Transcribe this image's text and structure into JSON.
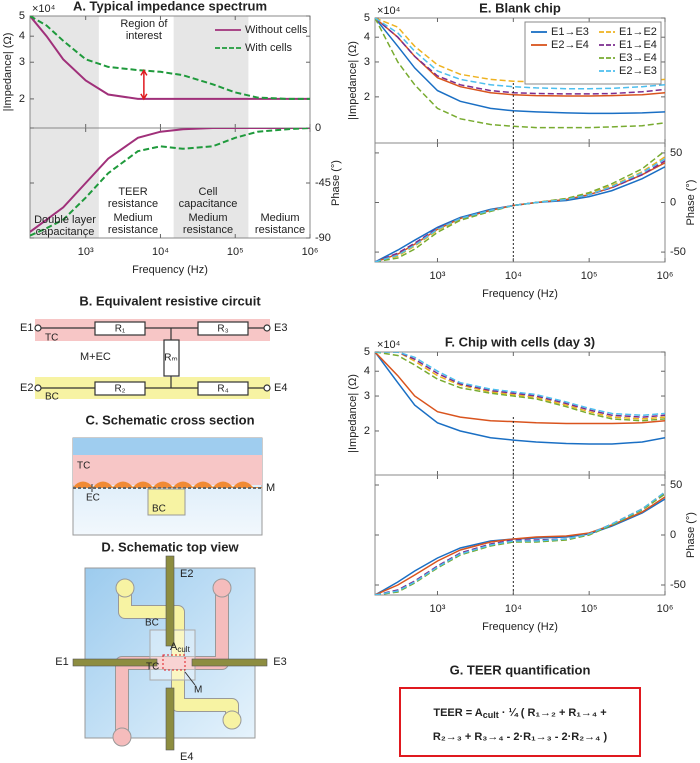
{
  "chart_data": [
    {
      "type": "line",
      "title": "A. Typical impedance spectrum",
      "ylabel": "|Impedance| (Ω)",
      "y_multiplier": "×10⁴",
      "log_x": true,
      "log_y": true,
      "xlim": [
        180,
        1000000
      ],
      "ylim": [
        14500,
        50000
      ],
      "yticks": [
        {
          "value": 20000,
          "label": "2"
        },
        {
          "value": 30000,
          "label": "3"
        },
        {
          "value": 40000,
          "label": "4"
        },
        {
          "value": 50000,
          "label": "5"
        }
      ],
      "x": [
        180,
        300,
        500,
        1000,
        2000,
        5000,
        10000,
        20000,
        50000,
        100000,
        200000,
        500000,
        1000000
      ],
      "shaded": [
        [
          180,
          1500
        ],
        [
          15000,
          150000
        ]
      ],
      "annotation": [
        "Region of",
        "interest"
      ],
      "arrow": {
        "x": 6000,
        "from": 20000,
        "to": 27400,
        "color": "#e0191f"
      },
      "series": [
        {
          "name": "Without cells",
          "color": "#a0307a",
          "dash": false,
          "values": [
            50000,
            40000,
            31000,
            24500,
            21000,
            20000,
            20000,
            20000,
            20000,
            20000,
            20000,
            20000,
            20000
          ]
        },
        {
          "name": "With cells",
          "color": "#1f9a3c",
          "dash": true,
          "values": [
            50000,
            45000,
            38000,
            31000,
            28500,
            27500,
            27000,
            26000,
            23500,
            21500,
            20300,
            20000,
            20000
          ]
        }
      ]
    },
    {
      "type": "line",
      "ylabel": "Phase (°)",
      "xlabel": "Frequency (Hz)",
      "log_x": true,
      "xlim": [
        180,
        1000000
      ],
      "ylim": [
        -90,
        0
      ],
      "yticks": [
        -90,
        -45,
        0
      ],
      "xticks": [
        {
          "value": 1000,
          "label": "10³"
        },
        {
          "value": 10000,
          "label": "10⁴"
        },
        {
          "value": 100000,
          "label": "10⁵"
        },
        {
          "value": 1000000,
          "label": "10⁶"
        }
      ],
      "x": [
        180,
        300,
        500,
        1000,
        2000,
        5000,
        10000,
        20000,
        50000,
        100000,
        200000,
        500000,
        1000000
      ],
      "annotations": [
        {
          "lines": [
            "Double layer",
            "capacitance"
          ],
          "color": "#333333"
        },
        {
          "lines": [
            "TEER",
            "resistance"
          ],
          "color": "#1f9a3c"
        },
        {
          "lines": [
            "Medium",
            "resistance"
          ],
          "color": "#a0307a"
        },
        {
          "lines": [
            "Cell",
            "capacitance"
          ],
          "color": "#1f9a3c"
        },
        {
          "lines": [
            "Medium",
            "resistance"
          ],
          "color": "#a0307a"
        },
        {
          "lines": [
            "Medium",
            "resistance"
          ],
          "color": "#333333"
        }
      ],
      "series": [
        {
          "color": "#a0307a",
          "dash": false,
          "values": [
            -85,
            -75,
            -65,
            -45,
            -25,
            -8,
            -3,
            -1,
            0,
            0,
            0,
            0,
            0
          ]
        },
        {
          "color": "#1f9a3c",
          "dash": true,
          "values": [
            -88,
            -82,
            -75,
            -57,
            -37,
            -19,
            -15,
            -17,
            -15,
            -8,
            -3,
            -1,
            0
          ]
        }
      ]
    },
    {
      "type": "line",
      "title": "E. Blank chip",
      "ylabel": "|Impedance| (Ω)",
      "y_multiplier": "×10⁴",
      "log_x": true,
      "log_y": true,
      "xlim": [
        150,
        1000000
      ],
      "ylim": [
        11700,
        50000
      ],
      "marker_x": 10000,
      "yticks": [
        {
          "value": 20000,
          "label": "2"
        },
        {
          "value": 30000,
          "label": "3"
        },
        {
          "value": 40000,
          "label": "4"
        },
        {
          "value": 50000,
          "label": "5"
        }
      ],
      "x": [
        150,
        300,
        500,
        1000,
        2000,
        5000,
        10000,
        20000,
        50000,
        100000,
        200000,
        500000,
        1000000
      ],
      "series": [
        {
          "name": "E1→E3",
          "color": "#1a6fc4",
          "dash": false,
          "values": [
            50000,
            36000,
            28000,
            21500,
            19000,
            17500,
            17000,
            16800,
            16600,
            16500,
            16500,
            16600,
            16800
          ]
        },
        {
          "name": "E2→E4",
          "color": "#d9541e",
          "dash": false,
          "values": [
            50000,
            40000,
            32000,
            25000,
            22500,
            21000,
            20500,
            20300,
            20200,
            20200,
            20300,
            20500,
            21000
          ]
        },
        {
          "name": "E1→E2",
          "color": "#eeb220",
          "dash": true,
          "values": [
            50000,
            45000,
            36000,
            29000,
            26000,
            24500,
            24000,
            23800,
            23700,
            23700,
            23800,
            24000,
            24500
          ]
        },
        {
          "name": "E1→E4",
          "color": "#7b2d8e",
          "dash": true,
          "values": [
            50000,
            40000,
            32000,
            25500,
            23000,
            21500,
            21000,
            20800,
            20700,
            20700,
            20800,
            21200,
            21800
          ]
        },
        {
          "name": "E3→E4",
          "color": "#78ab30",
          "dash": true,
          "values": [
            50000,
            30000,
            23000,
            17500,
            15500,
            14500,
            14200,
            14000,
            14000,
            14000,
            14100,
            14300,
            14800
          ]
        },
        {
          "name": "E2→E3",
          "color": "#4dbfee",
          "dash": true,
          "values": [
            50000,
            42000,
            34000,
            27000,
            24500,
            23000,
            22500,
            22200,
            22000,
            22000,
            22100,
            22500,
            23000
          ]
        }
      ]
    },
    {
      "type": "line",
      "ylabel": "Phase (°)",
      "xlabel": "Frequency (Hz)",
      "log_x": true,
      "xlim": [
        150,
        1000000
      ],
      "ylim": [
        -60,
        60
      ],
      "yticks": [
        -50,
        0,
        50
      ],
      "xticks": [
        {
          "value": 1000,
          "label": "10³"
        },
        {
          "value": 10000,
          "label": "10⁴"
        },
        {
          "value": 100000,
          "label": "10⁵"
        },
        {
          "value": 1000000,
          "label": "10⁶"
        }
      ],
      "x": [
        150,
        300,
        500,
        1000,
        2000,
        5000,
        10000,
        20000,
        50000,
        100000,
        200000,
        500000,
        1000000
      ],
      "series": [
        {
          "color": "#1a6fc4",
          "dash": false,
          "values": [
            -60,
            -48,
            -38,
            -25,
            -15,
            -7,
            -3,
            0,
            2,
            6,
            12,
            24,
            36
          ]
        },
        {
          "color": "#d9541e",
          "dash": false,
          "values": [
            -60,
            -52,
            -42,
            -27,
            -16,
            -8,
            -3,
            0,
            3,
            8,
            15,
            28,
            40
          ]
        },
        {
          "color": "#eeb220",
          "dash": true,
          "values": [
            -60,
            -54,
            -44,
            -28,
            -17,
            -8,
            -3,
            0,
            4,
            9,
            17,
            31,
            46
          ]
        },
        {
          "color": "#7b2d8e",
          "dash": true,
          "values": [
            -60,
            -51,
            -41,
            -26,
            -16,
            -8,
            -3,
            0,
            3,
            8,
            15,
            28,
            42
          ]
        },
        {
          "color": "#78ab30",
          "dash": true,
          "values": [
            -60,
            -56,
            -47,
            -30,
            -18,
            -9,
            -3,
            0,
            4,
            10,
            19,
            34,
            52
          ]
        },
        {
          "color": "#4dbfee",
          "dash": true,
          "values": [
            -60,
            -53,
            -43,
            -27,
            -16,
            -8,
            -3,
            0,
            3,
            8,
            16,
            30,
            44
          ]
        }
      ]
    },
    {
      "type": "line",
      "title": "F. Chip with cells (day 3)",
      "ylabel": "|Impedance| (Ω)",
      "y_multiplier": "×10⁴",
      "log_x": true,
      "log_y": true,
      "xlim": [
        150,
        1000000
      ],
      "ylim": [
        12000,
        50000
      ],
      "marker_x": 10000,
      "yticks": [
        {
          "value": 20000,
          "label": "2"
        },
        {
          "value": 30000,
          "label": "3"
        },
        {
          "value": 40000,
          "label": "4"
        },
        {
          "value": 50000,
          "label": "5"
        }
      ],
      "x": [
        150,
        300,
        500,
        1000,
        2000,
        5000,
        10000,
        20000,
        50000,
        100000,
        200000,
        500000,
        1000000
      ],
      "series": [
        {
          "color": "#1a6fc4",
          "dash": false,
          "values": [
            50000,
            35000,
            27000,
            22000,
            20000,
            18500,
            18000,
            17600,
            17300,
            17200,
            17200,
            17600,
            18500
          ]
        },
        {
          "color": "#d9541e",
          "dash": false,
          "values": [
            50000,
            38000,
            30000,
            25000,
            23500,
            22500,
            22300,
            22000,
            21800,
            21800,
            21800,
            22000,
            22500
          ]
        },
        {
          "color": "#eeb220",
          "dash": true,
          "values": [
            50000,
            50000,
            45000,
            38000,
            34000,
            31500,
            30500,
            29500,
            27000,
            25000,
            23500,
            23000,
            23500
          ]
        },
        {
          "color": "#7b2d8e",
          "dash": true,
          "values": [
            50000,
            50000,
            46000,
            39000,
            34500,
            32000,
            31000,
            30000,
            27500,
            25500,
            24000,
            23500,
            24000
          ]
        },
        {
          "color": "#78ab30",
          "dash": true,
          "values": [
            50000,
            48000,
            43000,
            36500,
            33000,
            31000,
            30000,
            29000,
            26500,
            24500,
            23000,
            22500,
            23000
          ]
        },
        {
          "color": "#4dbfee",
          "dash": true,
          "values": [
            50000,
            50000,
            47000,
            40000,
            35000,
            32500,
            31500,
            30500,
            28000,
            26000,
            24500,
            24000,
            24500
          ]
        }
      ]
    },
    {
      "type": "line",
      "ylabel": "Phase (°)",
      "xlabel": "Frequency (Hz)",
      "log_x": true,
      "xlim": [
        150,
        1000000
      ],
      "ylim": [
        -60,
        60
      ],
      "yticks": [
        -50,
        0,
        50
      ],
      "xticks": [
        {
          "value": 1000,
          "label": "10³"
        },
        {
          "value": 10000,
          "label": "10⁴"
        },
        {
          "value": 100000,
          "label": "10⁵"
        },
        {
          "value": 1000000,
          "label": "10⁶"
        }
      ],
      "x": [
        150,
        300,
        500,
        1000,
        2000,
        5000,
        10000,
        20000,
        50000,
        100000,
        200000,
        500000,
        1000000
      ],
      "series": [
        {
          "color": "#1a6fc4",
          "dash": false,
          "values": [
            -60,
            -47,
            -36,
            -23,
            -13,
            -6,
            -4,
            -3,
            -2,
            1,
            9,
            22,
            36
          ]
        },
        {
          "color": "#d9541e",
          "dash": false,
          "values": [
            -60,
            -50,
            -40,
            -26,
            -15,
            -7,
            -4,
            -2,
            -1,
            2,
            10,
            23,
            38
          ]
        },
        {
          "color": "#eeb220",
          "dash": true,
          "values": [
            -60,
            -56,
            -47,
            -32,
            -19,
            -10,
            -6,
            -6,
            -4,
            1,
            11,
            26,
            43
          ]
        },
        {
          "color": "#7b2d8e",
          "dash": true,
          "values": [
            -60,
            -55,
            -46,
            -31,
            -18,
            -9,
            -5,
            -5,
            -4,
            1,
            11,
            26,
            42
          ]
        },
        {
          "color": "#78ab30",
          "dash": true,
          "values": [
            -60,
            -57,
            -48,
            -33,
            -20,
            -11,
            -7,
            -7,
            -5,
            0,
            10,
            25,
            41
          ]
        },
        {
          "color": "#4dbfee",
          "dash": true,
          "values": [
            -60,
            -56,
            -47,
            -32,
            -19,
            -10,
            -6,
            -6,
            -4,
            1,
            11,
            26,
            43
          ]
        }
      ]
    }
  ],
  "circuit": {
    "title": "B. Equivalent resistive circuit",
    "nodes": [
      "E1",
      "E3",
      "E2",
      "E4"
    ],
    "layers": [
      "TC",
      "BC"
    ],
    "resistors": [
      "R₁",
      "R₃",
      "R₂",
      "R₄",
      "Rₘ"
    ],
    "label": "M+EC"
  },
  "cross_section": {
    "title": "C. Schematic cross section",
    "labels": [
      "TC",
      "EC",
      "BC",
      "M"
    ]
  },
  "top_view": {
    "title": "D. Schematic top view",
    "electrodes": [
      "E2",
      "E1",
      "E3",
      "E4"
    ],
    "labels": [
      "BC",
      "TC",
      "M"
    ],
    "area": [
      "A",
      "cult"
    ]
  },
  "teer": {
    "title": "G. TEER quantification",
    "line1": [
      "TEER = A",
      "cult",
      " · ¼ ( R₁→₂ + R₁→₄ +"
    ],
    "line2": "R₂→₃ + R₃→₄ - 2·R₁→₃ - 2·R₂→₄ )"
  }
}
